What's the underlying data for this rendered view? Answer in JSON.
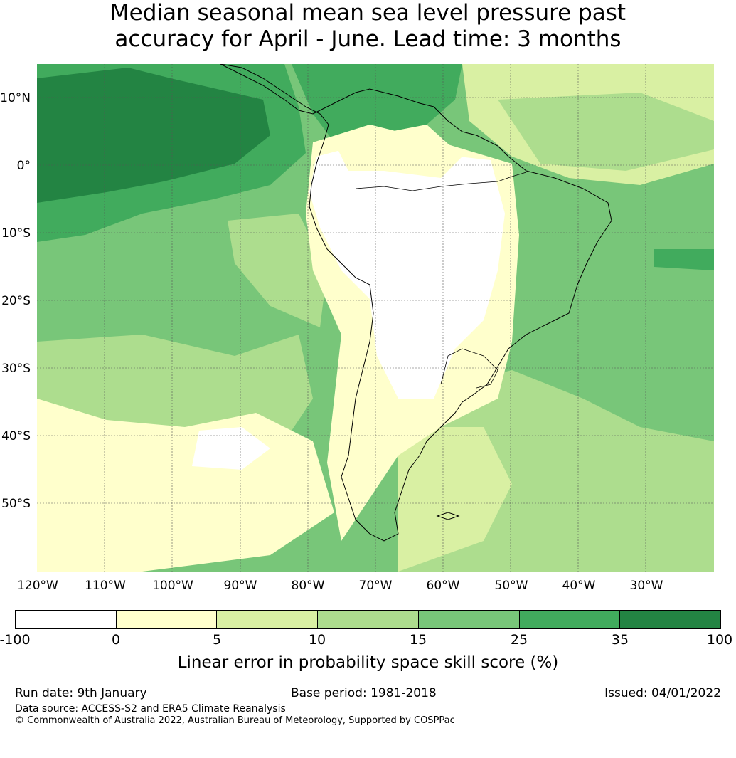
{
  "title": {
    "line1": "Median seasonal mean sea level pressure past",
    "line2": "accuracy for April - June. Lead time: 3 months"
  },
  "map": {
    "lon_labels": [
      "120°W",
      "110°W",
      "100°W",
      "90°W",
      "80°W",
      "70°W",
      "60°W",
      "50°W",
      "40°W",
      "30°W"
    ],
    "lat_labels": [
      "10°N",
      "0°",
      "10°S",
      "20°S",
      "30°S",
      "40°S",
      "50°S"
    ],
    "extent": {
      "lon_min": -120,
      "lon_max": -20,
      "lat_min": -60,
      "lat_max": 15
    }
  },
  "colorbar": {
    "ticks": [
      "-100",
      "0",
      "5",
      "10",
      "15",
      "25",
      "35",
      "100"
    ],
    "colors": [
      "#ffffff",
      "#ffffcc",
      "#d9f0a3",
      "#addd8e",
      "#78c679",
      "#41ab5d",
      "#238443"
    ],
    "label": "Linear error in probability space skill score (%)"
  },
  "footer": {
    "run_date": "Run date: 9th January",
    "base_period": "Base period: 1981-2018",
    "issued": "Issued: 04/01/2022",
    "data_source": "Data source: ACCESS-S2 and ERA5 Climate Reanalysis",
    "copyright": "© Commonwealth of Australia 2022, Australian Bureau of Meteorology, Supported by COSPPac"
  }
}
